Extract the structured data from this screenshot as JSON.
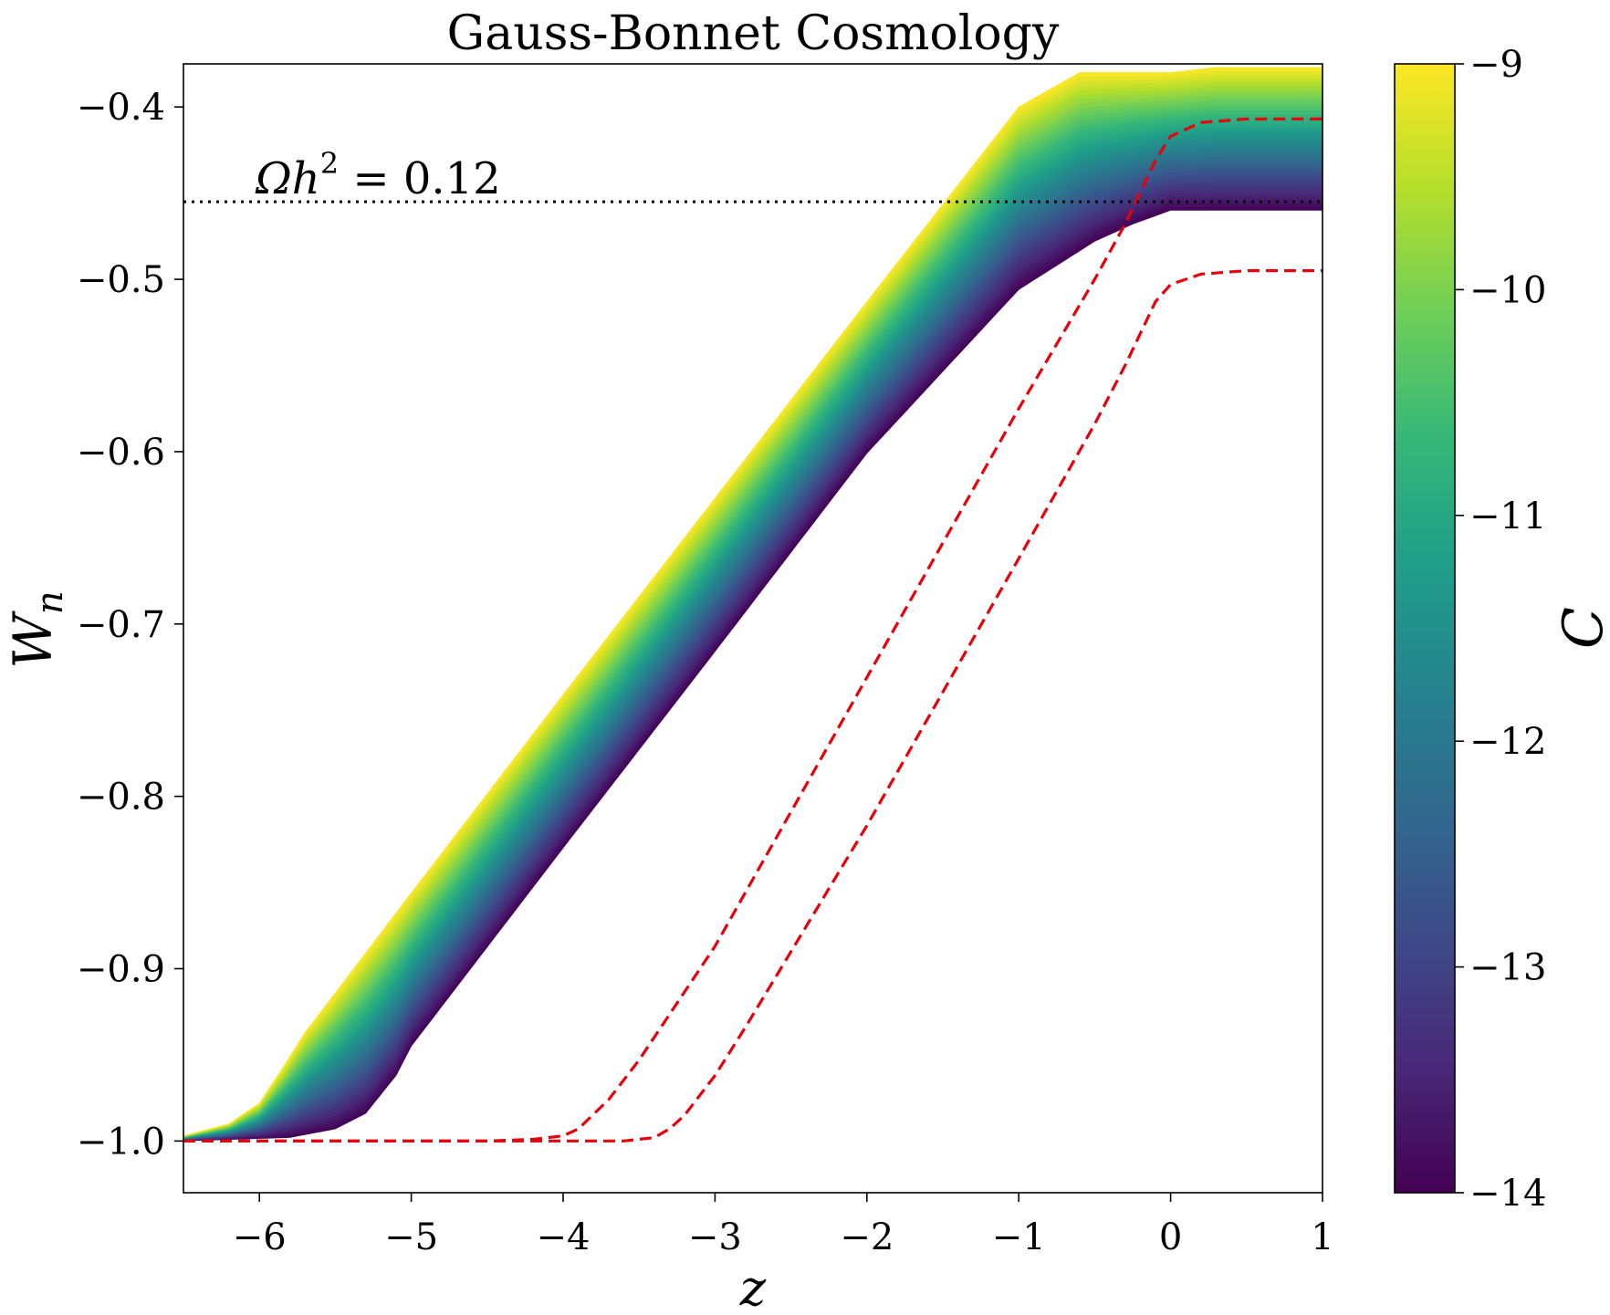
{
  "chart_data": {
    "type": "area",
    "title": "Gauss-Bonnet Cosmology",
    "xlabel": "z",
    "ylabel": "W",
    "ylabel_sub": "n",
    "xlim": [
      -6.5,
      1
    ],
    "ylim": [
      -1.03,
      -0.375
    ],
    "x_ticks": [
      -6,
      -5,
      -4,
      -3,
      -2,
      -1,
      0,
      1
    ],
    "x_tick_labels": [
      "−6",
      "−5",
      "−4",
      "−3",
      "−2",
      "−1",
      "0",
      "1"
    ],
    "y_ticks": [
      -1.0,
      -0.9,
      -0.8,
      -0.7,
      -0.6,
      -0.5,
      -0.4
    ],
    "y_tick_labels": [
      "−1.0",
      "−0.9",
      "−0.8",
      "−0.7",
      "−0.6",
      "−0.5",
      "−0.4"
    ],
    "grid": false,
    "colorbar": {
      "label": "C",
      "colormap": "viridis",
      "range": [
        -14,
        -9
      ],
      "ticks": [
        -9,
        -10,
        -11,
        -12,
        -13,
        -14
      ],
      "tick_labels": [
        "−9",
        "−10",
        "−11",
        "−12",
        "−13",
        "−14"
      ],
      "colors": [
        "#440154",
        "#482878",
        "#3e4989",
        "#31688e",
        "#26828e",
        "#1f9e89",
        "#35b779",
        "#6ece58",
        "#b5de2b",
        "#fde725"
      ]
    },
    "band": {
      "description_color": "C",
      "upper_edge": [
        [
          -6.5,
          -0.997
        ],
        [
          -6.2,
          -0.99
        ],
        [
          -6.0,
          -0.978
        ],
        [
          -5.85,
          -0.958
        ],
        [
          -5.7,
          -0.937
        ],
        [
          -5.5,
          -0.914
        ],
        [
          -5.0,
          -0.856
        ],
        [
          -4.0,
          -0.741
        ],
        [
          -3.0,
          -0.627
        ],
        [
          -2.0,
          -0.513
        ],
        [
          -1.0,
          -0.4
        ],
        [
          -0.6,
          -0.38
        ],
        [
          -0.3,
          -0.38
        ],
        [
          0.0,
          -0.38
        ],
        [
          0.3,
          -0.377
        ],
        [
          1.0,
          -0.377
        ]
      ],
      "lower_edge": [
        [
          -6.5,
          -1.0
        ],
        [
          -5.8,
          -0.998
        ],
        [
          -5.5,
          -0.993
        ],
        [
          -5.3,
          -0.984
        ],
        [
          -5.1,
          -0.962
        ],
        [
          -5.0,
          -0.945
        ],
        [
          -4.0,
          -0.83
        ],
        [
          -3.0,
          -0.716
        ],
        [
          -2.0,
          -0.601
        ],
        [
          -1.0,
          -0.506
        ],
        [
          -0.5,
          -0.478
        ],
        [
          -0.25,
          -0.468
        ],
        [
          0.0,
          -0.46
        ],
        [
          0.3,
          -0.46
        ],
        [
          1.0,
          -0.46
        ]
      ]
    },
    "series": [
      {
        "color": "#e8000b",
        "style": "dashed",
        "x": [
          -6.5,
          -4.5,
          -4.2,
          -4.0,
          -3.9,
          -3.7,
          -3.5,
          -3.0,
          -2.0,
          -1.0,
          -0.5,
          -0.3,
          -0.1,
          0.0,
          0.2,
          0.5,
          1.0
        ],
        "y": [
          -1.0,
          -1.0,
          -0.999,
          -0.997,
          -0.993,
          -0.976,
          -0.953,
          -0.887,
          -0.731,
          -0.575,
          -0.5,
          -0.468,
          -0.431,
          -0.417,
          -0.409,
          -0.407,
          -0.407
        ]
      },
      {
        "color": "#e8000b",
        "style": "dashed",
        "x": [
          -6.5,
          -3.6,
          -3.4,
          -3.3,
          -3.2,
          -3.0,
          -2.8,
          -2.0,
          -1.0,
          -0.5,
          -0.3,
          -0.1,
          0.0,
          0.2,
          0.5,
          1.0
        ],
        "y": [
          -1.0,
          -1.0,
          -0.998,
          -0.993,
          -0.985,
          -0.962,
          -0.934,
          -0.817,
          -0.662,
          -0.584,
          -0.55,
          -0.513,
          -0.503,
          -0.497,
          -0.495,
          -0.495
        ]
      }
    ],
    "hlines": [
      {
        "y": -0.455,
        "style": "dotted",
        "color": "#000000",
        "label": "Ωh² = 0.12"
      }
    ],
    "annotation": {
      "text_prefix": "Ωh",
      "superscript": "2",
      "text_suffix": " = 0.12"
    }
  }
}
